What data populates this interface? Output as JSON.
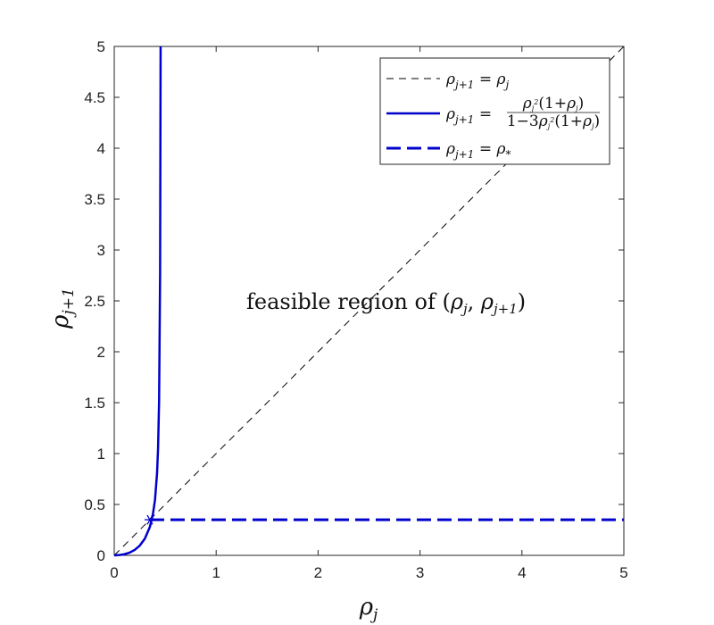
{
  "chart_data": {
    "type": "line",
    "xlabel": "ρ_j",
    "ylabel": "ρ_{j+1}",
    "xlim": [
      0,
      5
    ],
    "ylim": [
      0,
      5
    ],
    "xticks": [
      "0",
      "1",
      "2",
      "3",
      "4",
      "5"
    ],
    "yticks": [
      "0",
      "0.5",
      "1",
      "1.5",
      "2",
      "2.5",
      "3",
      "3.5",
      "4",
      "4.5",
      "5"
    ],
    "grid": false,
    "legend_position": "top-right",
    "annotation": "feasible region of (ρ_j, ρ_{j+1})",
    "series": [
      {
        "name": "ρ_{j+1} = ρ_j",
        "style": "dashed",
        "color": "#000000",
        "x": [
          0,
          5
        ],
        "y": [
          0,
          5
        ]
      },
      {
        "name": "ρ_{j+1} = ρ_j²(1+ρ_j) / (1−3ρ_j²(1+ρ_j))",
        "style": "solid",
        "color": "#0000cc",
        "x": [
          0,
          0.05,
          0.1,
          0.15,
          0.2,
          0.25,
          0.3,
          0.35,
          0.38,
          0.4,
          0.42,
          0.43,
          0.44,
          0.45,
          0.455
        ],
        "y": [
          0,
          0.003,
          0.011,
          0.027,
          0.053,
          0.095,
          0.163,
          0.28,
          0.408,
          0.546,
          0.807,
          1.05,
          1.51,
          2.77,
          5.0
        ]
      },
      {
        "name": "ρ_{j+1} = ρ_*",
        "style": "dashed-bold",
        "color": "#0000cc",
        "x": [
          0.35,
          5
        ],
        "y": [
          0.35,
          0.35
        ]
      }
    ],
    "marker": {
      "x": 0.35,
      "y": 0.35,
      "symbol": "asterisk",
      "color": "#0000cc"
    }
  }
}
